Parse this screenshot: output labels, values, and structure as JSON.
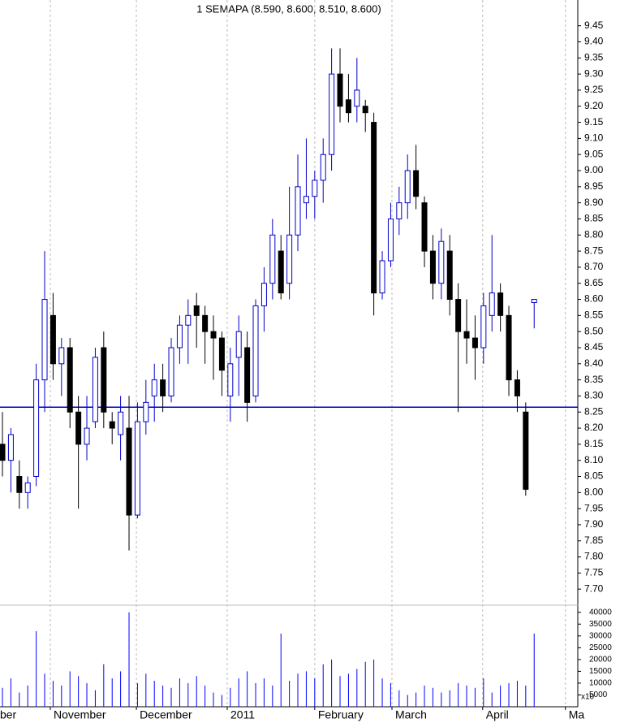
{
  "chart_data": {
    "type": "candlestick",
    "title": "1 SEMAPA (8.590, 8.600, 8.510, 8.600)",
    "categories": [
      null,
      null,
      null,
      null,
      null,
      null,
      null,
      null,
      null,
      null,
      null,
      null,
      null,
      null,
      null,
      null,
      null,
      null,
      null,
      null,
      null,
      null,
      null,
      null,
      null,
      null,
      null,
      null,
      null,
      null,
      null,
      null,
      null,
      null,
      null,
      null,
      null,
      null,
      null,
      null,
      null,
      null,
      null,
      null,
      null,
      null,
      null,
      null,
      null,
      null,
      null,
      null,
      null,
      null,
      null,
      null,
      null,
      null,
      null,
      null,
      null,
      null,
      null,
      null
    ],
    "open": [
      8.15,
      8.1,
      8.05,
      8.0,
      8.05,
      8.35,
      8.55,
      8.4,
      8.45,
      8.25,
      8.15,
      8.22,
      8.45,
      8.22,
      8.18,
      8.2,
      7.93,
      8.22,
      8.3,
      8.35,
      8.3,
      8.45,
      8.52,
      8.58,
      8.55,
      8.5,
      8.48,
      8.3,
      8.42,
      8.45,
      8.3,
      8.58,
      8.65,
      8.75,
      8.65,
      8.8,
      8.9,
      8.92,
      8.97,
      9.05,
      9.3,
      9.22,
      9.2,
      9.2,
      9.15,
      8.62,
      8.72,
      8.85,
      8.9,
      9.0,
      8.9,
      8.75,
      8.65,
      8.75,
      8.6,
      8.5,
      8.48,
      8.45,
      8.55,
      8.62,
      8.55,
      8.35,
      8.25,
      8.59
    ],
    "high": [
      8.25,
      8.2,
      8.1,
      8.05,
      8.4,
      8.75,
      8.62,
      8.48,
      8.48,
      8.3,
      8.3,
      8.45,
      8.5,
      8.25,
      8.3,
      8.3,
      8.28,
      8.35,
      8.4,
      8.4,
      8.48,
      8.55,
      8.6,
      8.62,
      8.58,
      8.55,
      8.5,
      8.45,
      8.55,
      8.5,
      8.6,
      8.7,
      8.85,
      8.8,
      8.95,
      9.05,
      9.1,
      9.0,
      9.1,
      9.38,
      9.38,
      9.3,
      9.35,
      9.22,
      9.18,
      8.75,
      8.9,
      8.95,
      9.05,
      9.08,
      8.92,
      8.8,
      8.82,
      8.8,
      8.65,
      8.6,
      8.55,
      8.62,
      8.8,
      8.65,
      8.58,
      8.38,
      8.28,
      8.6
    ],
    "low": [
      8.05,
      8.0,
      7.95,
      7.95,
      8.02,
      8.25,
      8.35,
      8.3,
      8.2,
      7.95,
      8.1,
      8.2,
      8.2,
      8.15,
      8.1,
      7.82,
      7.92,
      8.18,
      8.22,
      8.25,
      8.28,
      8.4,
      8.4,
      8.45,
      8.4,
      8.35,
      8.3,
      8.22,
      8.3,
      8.22,
      8.28,
      8.5,
      8.6,
      8.6,
      8.6,
      8.75,
      8.85,
      8.85,
      8.9,
      9.0,
      9.15,
      9.15,
      9.15,
      9.12,
      8.55,
      8.6,
      8.7,
      8.8,
      8.85,
      8.88,
      8.7,
      8.6,
      8.6,
      8.55,
      8.25,
      8.4,
      8.35,
      8.4,
      8.5,
      8.5,
      8.3,
      8.25,
      7.99,
      8.51
    ],
    "close": [
      8.1,
      8.18,
      8.0,
      8.03,
      8.35,
      8.6,
      8.4,
      8.45,
      8.25,
      8.15,
      8.2,
      8.42,
      8.25,
      8.2,
      8.25,
      7.93,
      8.22,
      8.28,
      8.35,
      8.3,
      8.45,
      8.52,
      8.55,
      8.55,
      8.5,
      8.48,
      8.38,
      8.4,
      8.5,
      8.28,
      8.58,
      8.65,
      8.8,
      8.62,
      8.8,
      8.95,
      8.92,
      8.97,
      9.05,
      9.3,
      9.2,
      9.18,
      9.25,
      9.18,
      8.62,
      8.72,
      8.85,
      8.9,
      9.0,
      8.92,
      8.75,
      8.65,
      8.78,
      8.6,
      8.5,
      8.48,
      8.45,
      8.58,
      8.62,
      8.55,
      8.35,
      8.3,
      8.01,
      8.6
    ],
    "up_color": "#ffffff",
    "up_edge": "#0000cc",
    "down_color": "#000000",
    "ylim": [
      7.65,
      9.53
    ],
    "yticks": [
      {
        "value": 7.7,
        "label": "7.70"
      },
      7.75,
      {
        "value": 7.8,
        "label": "7.80"
      },
      7.85,
      {
        "value": 7.9,
        "label": "7.90"
      },
      7.95,
      {
        "value": 8,
        "label": "8.00"
      },
      8.05,
      {
        "value": 8.1,
        "label": "8.10"
      },
      8.15,
      {
        "value": 8.2,
        "label": "8.20"
      },
      8.25,
      {
        "value": 8.3,
        "label": "8.30"
      },
      8.35,
      {
        "value": 8.4,
        "label": "8.40"
      },
      8.45,
      {
        "value": 8.5,
        "label": "8.50"
      },
      8.55,
      {
        "value": 8.6,
        "label": "8.60"
      },
      8.65,
      {
        "value": 8.7,
        "label": "8.70"
      },
      8.75,
      {
        "value": 8.8,
        "label": "8.80"
      },
      8.85,
      {
        "value": 8.9,
        "label": "8.90"
      },
      8.95,
      {
        "value": 9,
        "label": "9.00"
      },
      9.05,
      {
        "value": 9.1,
        "label": "9.10"
      },
      9.15,
      {
        "value": 9.2,
        "label": "9.20"
      },
      9.25,
      {
        "value": 9.3,
        "label": "9.30"
      },
      9.35,
      {
        "value": 9.4,
        "label": "9.40"
      },
      9.45
    ],
    "hline": 8.265,
    "hline_color": "#0000cc",
    "xlim": [
      -0.29,
      68.17
    ],
    "xticks": [
      {
        "value": -0.68,
        "label": "ber"
      },
      {
        "value": 5.67,
        "label": "November"
      },
      {
        "value": 15.87,
        "label": "December"
      },
      {
        "value": 26.63,
        "label": "2011"
      },
      {
        "value": 37.0,
        "label": "February"
      },
      {
        "value": 46.15,
        "label": "March"
      },
      {
        "value": 56.9,
        "label": "April"
      },
      {
        "value": 66.7,
        "label": "Ma"
      }
    ],
    "grid": true,
    "volume": {
      "values": [
        8000,
        12000,
        6000,
        9000,
        32000,
        14000,
        11000,
        9000,
        15000,
        13000,
        10000,
        7000,
        18000,
        12000,
        15000,
        40000,
        10000,
        14000,
        11000,
        9000,
        8000,
        12000,
        10000,
        13000,
        9000,
        6000,
        5000,
        8000,
        12000,
        15000,
        10000,
        12000,
        9000,
        31000,
        11000,
        14000,
        15000,
        12000,
        18000,
        20000,
        13000,
        14000,
        16000,
        19000,
        20000,
        12000,
        10000,
        7000,
        5000,
        6000,
        9000,
        8000,
        6000,
        7000,
        10000,
        9000,
        8000,
        12000,
        6000,
        9000,
        10000,
        11000,
        9000,
        31000
      ],
      "color": "#0000ff",
      "ylim": [
        0,
        43000
      ],
      "yticks": [
        5000,
        10000,
        15000,
        20000,
        25000,
        30000,
        35000,
        40000
      ],
      "multiplier_label": "x10"
    }
  }
}
